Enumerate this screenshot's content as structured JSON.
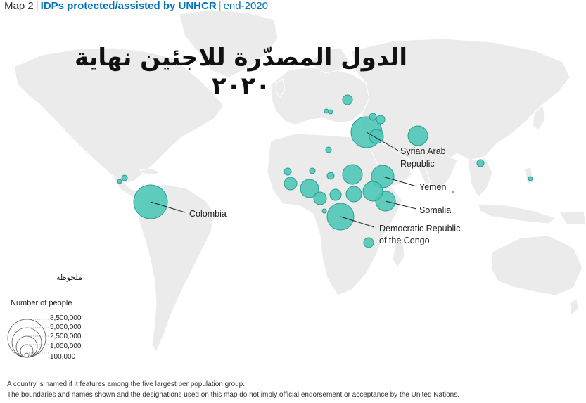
{
  "header": {
    "map_number": "Map 2",
    "separator": "|",
    "title": "IDPs protected/assisted by UNHCR",
    "date": "end-2020"
  },
  "arabic_title": "الدول المصدّرة للاجئين نهاية ٢٠٢٠",
  "note_arabic": "ملحوظة",
  "legend": {
    "title": "Number of people",
    "values": [
      "8,500,000",
      "5,000,000",
      "2,500,000",
      "1,000,000",
      "100,000"
    ]
  },
  "labels": {
    "syria": [
      "Syrian Arab",
      "Republic"
    ],
    "yemen": "Yemen",
    "somalia": "Somalia",
    "drc": [
      "Democratic Republic",
      "of the Congo"
    ],
    "colombia": "Colombia"
  },
  "footnotes": [
    "A country is named if it features among the five largest per population group.",
    "The boundaries and names shown and the designations used on this map do not imply official endorsement or acceptance by the United Nations."
  ],
  "colors": {
    "ocean": "#ffffff",
    "land": "#ebebeb",
    "border": "#ffffff",
    "bubble_fill": "#4fc8b8",
    "bubble_stroke": "#2a9d8f",
    "title_blue": "#0072bc"
  }
}
